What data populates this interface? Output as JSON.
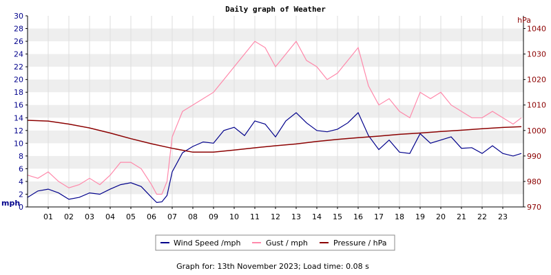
{
  "chart_data": {
    "type": "line",
    "title": "Daily graph of Weather",
    "footer": "Graph for: 13th November 2023; Load time: 0.08 s",
    "left_axis": {
      "unit": "mph",
      "ylim": [
        0,
        30
      ],
      "ticks": [
        "0",
        "2",
        "4",
        "6",
        "8",
        "10",
        "12",
        "14",
        "16",
        "18",
        "20",
        "22",
        "24",
        "26",
        "28",
        "30"
      ]
    },
    "right_axis": {
      "unit": "hPa",
      "ylim": [
        970,
        1045
      ],
      "ticks": [
        "970",
        "980",
        "990",
        "1000",
        "1010",
        "1020",
        "1030",
        "1040"
      ]
    },
    "x_axis": {
      "unit": "hour",
      "xlim": [
        0,
        24
      ],
      "ticks": [
        "01",
        "02",
        "03",
        "04",
        "05",
        "06",
        "07",
        "08",
        "09",
        "10",
        "11",
        "12",
        "13",
        "14",
        "15",
        "16",
        "17",
        "18",
        "19",
        "20",
        "21",
        "22",
        "23"
      ]
    },
    "grid": true,
    "legend_position": "bottom",
    "colors": {
      "wind": "#00008b",
      "gust": "#ff88aa",
      "pressure": "#8b0000",
      "band": "#eeeeee",
      "axis_right": "#8b0000",
      "axis_left": "#00008b"
    },
    "series": [
      {
        "name": "Wind Speed /mph",
        "axis": "left",
        "x": [
          0,
          0.5,
          1,
          1.5,
          2,
          2.5,
          3,
          3.5,
          4,
          4.5,
          5,
          5.5,
          6,
          6.25,
          6.5,
          6.75,
          7,
          7.5,
          8,
          8.5,
          9,
          9.5,
          10,
          10.5,
          11,
          11.5,
          12,
          12.5,
          13,
          13.5,
          14,
          14.5,
          15,
          15.5,
          16,
          16.5,
          17,
          17.5,
          18,
          18.5,
          19,
          19.5,
          20,
          20.5,
          21,
          21.5,
          22,
          22.5,
          23,
          23.5,
          23.9
        ],
        "values": [
          1.5,
          2.5,
          2.8,
          2.2,
          1.2,
          1.5,
          2.2,
          2.0,
          2.8,
          3.5,
          3.8,
          3.2,
          1.5,
          0.7,
          0.8,
          1.8,
          5.5,
          8.5,
          9.5,
          10.2,
          10.0,
          12.0,
          12.5,
          11.2,
          13.5,
          13.0,
          11.0,
          13.5,
          14.8,
          13.2,
          12.0,
          11.8,
          12.2,
          13.2,
          14.8,
          11.2,
          9.0,
          10.5,
          8.6,
          8.4,
          11.5,
          10.0,
          10.5,
          11.0,
          9.2,
          9.3,
          8.4,
          9.6,
          8.4,
          8.0,
          8.4
        ]
      },
      {
        "name": "Gust / mph",
        "axis": "left",
        "x": [
          0,
          0.5,
          1,
          1.5,
          2,
          2.5,
          3,
          3.5,
          4,
          4.5,
          5,
          5.5,
          6,
          6.25,
          6.5,
          6.75,
          7,
          7.5,
          8,
          8.5,
          9,
          9.5,
          10,
          10.5,
          11,
          11.5,
          12,
          12.5,
          13,
          13.5,
          14,
          14.5,
          15,
          15.5,
          16,
          16.5,
          17,
          17.5,
          18,
          18.5,
          19,
          19.5,
          20,
          20.5,
          21,
          21.5,
          22,
          22.5,
          23,
          23.5,
          23.9
        ],
        "values": [
          5,
          4.5,
          5.5,
          4,
          3,
          3.5,
          4.5,
          3.5,
          5,
          7,
          7,
          6,
          3.5,
          2,
          2,
          4,
          11,
          15,
          16,
          17,
          18,
          20,
          22,
          24,
          26,
          25,
          22,
          24,
          26,
          23,
          22,
          20,
          21,
          23,
          25,
          19,
          16,
          17,
          15,
          14,
          18,
          17,
          18,
          16,
          15,
          14,
          14,
          15,
          14,
          13,
          14
        ]
      },
      {
        "name": "Pressure / hPa",
        "axis": "right",
        "x": [
          0,
          1,
          2,
          3,
          4,
          5,
          6,
          7,
          8,
          9,
          10,
          11,
          12,
          13,
          14,
          15,
          16,
          17,
          18,
          19,
          20,
          21,
          22,
          23,
          23.9
        ],
        "values": [
          1004,
          1003.7,
          1002.5,
          1001,
          999,
          996.8,
          994.8,
          993,
          991.5,
          991.5,
          992.3,
          993.2,
          994.0,
          994.7,
          995.7,
          996.5,
          997.2,
          997.8,
          998.5,
          999,
          999.6,
          1000.1,
          1000.7,
          1001.2,
          1001.5
        ]
      }
    ]
  }
}
